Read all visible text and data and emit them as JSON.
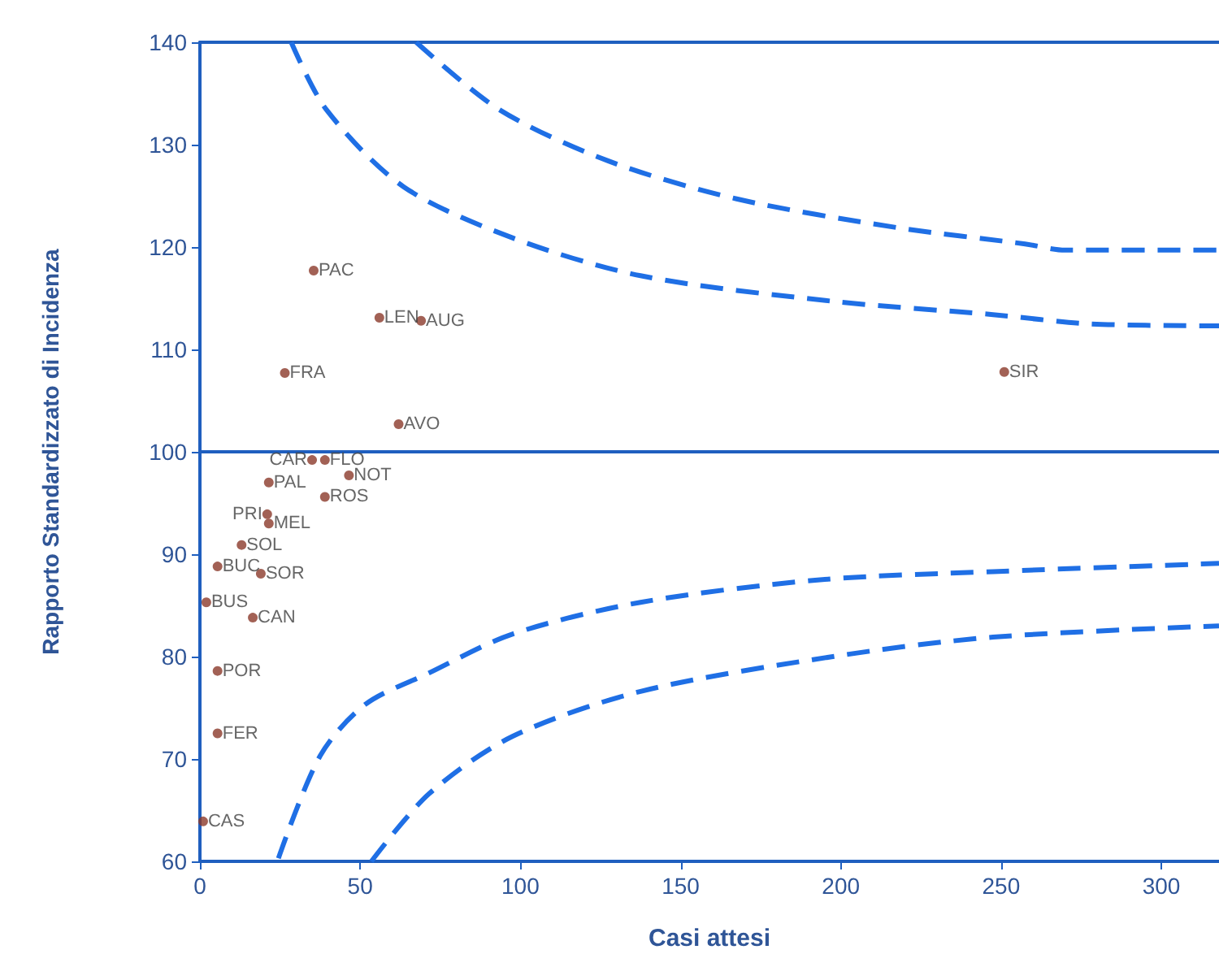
{
  "chart_data": {
    "type": "scatter",
    "xlabel": "Casi attesi",
    "ylabel": "Rapporto Standardizzato di Incidenza",
    "xlim": [
      0,
      318
    ],
    "ylim": [
      60,
      140
    ],
    "xticks": [
      0,
      50,
      100,
      150,
      200,
      250,
      300
    ],
    "yticks": [
      60,
      70,
      80,
      90,
      100,
      110,
      120,
      130,
      140
    ],
    "grid": false,
    "marker": "circle",
    "series": [
      {
        "color": "#8b3a2a",
        "x": [
          35.5,
          56,
          69,
          26.5,
          62,
          251,
          35,
          39,
          46.5,
          21.5,
          39,
          21,
          21.5,
          13,
          5.5,
          19,
          2,
          16.5,
          5.5,
          5.5,
          1
        ],
        "values": [
          117.7,
          113.1,
          112.8,
          107.7,
          102.7,
          107.8,
          99.2,
          99.2,
          97.7,
          97.0,
          95.6,
          93.9,
          93.0,
          90.9,
          88.8,
          88.1,
          85.3,
          83.8,
          78.6,
          72.5,
          63.9
        ]
      },
      {
        "type": "line",
        "marker": "none",
        "line_style": "dashed",
        "color": "#1f6fe5",
        "x": [
          28.5,
          39.5,
          63.5,
          97.5,
          137.5,
          197.5,
          247.5,
          277.5,
          318
        ],
        "values": [
          140,
          133.4,
          125.9,
          120.9,
          117.2,
          114.7,
          113.4,
          112.5,
          112.3
        ]
      },
      {
        "type": "line",
        "marker": "none",
        "line_style": "dashed",
        "color": "#1f6fe5",
        "x": [
          24.5,
          37.5,
          51.5,
          71.5,
          97.5,
          137.5,
          193.5,
          247.5,
          318
        ],
        "values": [
          60.3,
          70.3,
          75.3,
          78.4,
          82.2,
          85.3,
          87.5,
          88.3,
          89.1
        ]
      },
      {
        "type": "line",
        "marker": "none",
        "line_style": "dashed",
        "color": "#1f6fe5",
        "x": [
          67.5,
          93.5,
          127.5,
          167.5,
          217.5,
          257.5,
          270,
          318
        ],
        "values": [
          140,
          133.4,
          128.4,
          124.7,
          121.9,
          120.3,
          119.7,
          119.7
        ]
      },
      {
        "type": "line",
        "marker": "none",
        "line_style": "dashed",
        "color": "#1f6fe5",
        "x": [
          53.5,
          71.5,
          97.5,
          137.5,
          197.5,
          247.5,
          318
        ],
        "values": [
          60,
          66.6,
          72.2,
          76.6,
          80,
          81.9,
          83
        ]
      }
    ],
    "ref_lines": [
      {
        "axis": "y",
        "value": 100,
        "color": "#1f5fbf"
      }
    ],
    "annotations": [
      {
        "text": "PAC",
        "x": 35.5,
        "y": 117.7
      },
      {
        "text": "LEN",
        "x": 56,
        "y": 113.1
      },
      {
        "text": "AUG",
        "x": 69,
        "y": 112.8
      },
      {
        "text": "FRA",
        "x": 26.5,
        "y": 107.7
      },
      {
        "text": "AVO",
        "x": 62,
        "y": 102.7
      },
      {
        "text": "SIR",
        "x": 251,
        "y": 107.8
      },
      {
        "text": "CAR",
        "x": 35,
        "y": 99.2
      },
      {
        "text": "FLO",
        "x": 39,
        "y": 99.2
      },
      {
        "text": "NOT",
        "x": 46.5,
        "y": 97.7
      },
      {
        "text": "PAL",
        "x": 21.5,
        "y": 97.0
      },
      {
        "text": "ROS",
        "x": 39,
        "y": 95.6
      },
      {
        "text": "PRI",
        "x": 21,
        "y": 93.9
      },
      {
        "text": "MEL",
        "x": 21.5,
        "y": 93.0
      },
      {
        "text": "SOL",
        "x": 13,
        "y": 90.9
      },
      {
        "text": "BUC",
        "x": 5.5,
        "y": 88.8
      },
      {
        "text": "SOR",
        "x": 19,
        "y": 88.1
      },
      {
        "text": "BUS",
        "x": 2,
        "y": 85.3
      },
      {
        "text": "CAN",
        "x": 16.5,
        "y": 83.8
      },
      {
        "text": "POR",
        "x": 5.5,
        "y": 78.6
      },
      {
        "text": "FER",
        "x": 5.5,
        "y": 72.5
      },
      {
        "text": "CAS",
        "x": 1,
        "y": 63.9
      }
    ]
  }
}
